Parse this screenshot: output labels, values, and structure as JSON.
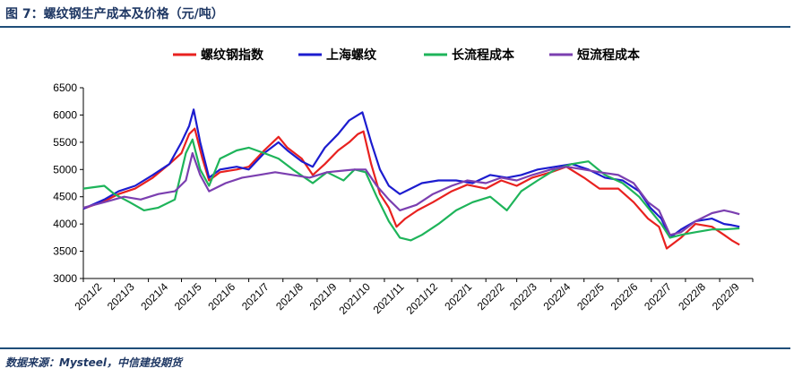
{
  "header": {
    "title": "图 7：螺纹钢生产成本及价格（元/吨）"
  },
  "footer": {
    "source": "数据来源：Mysteel，中信建投期货"
  },
  "chart_data": {
    "type": "line",
    "title": "",
    "xlabel": "",
    "ylabel": "",
    "ylim": [
      3000,
      6500
    ],
    "yticks": [
      3000,
      3500,
      4000,
      4500,
      5000,
      5500,
      6000,
      6500
    ],
    "grid": false,
    "legend_position": "top",
    "xtick_labels": [
      "2021/2",
      "2021/3",
      "2021/4",
      "2021/5",
      "2021/6",
      "2021/7",
      "2021/8",
      "2021/9",
      "2021/10",
      "2021/11",
      "2021/12",
      "2022/1",
      "2022/2",
      "2022/3",
      "2022/4",
      "2022/5",
      "2022/6",
      "2022/7",
      "2022/8",
      "2022/9"
    ],
    "x_months": [
      "2021-02",
      "2021-03",
      "2021-04",
      "2021-05",
      "2021-06",
      "2021-07",
      "2021-08",
      "2021-09",
      "2021-10",
      "2021-11",
      "2021-12",
      "2022-01",
      "2022-02",
      "2022-03",
      "2022-04",
      "2022-05",
      "2022-06",
      "2022-07",
      "2022-08",
      "2022-09",
      "2022-10"
    ],
    "series": [
      {
        "name": "螺纹钢指数",
        "color": "#e8211f",
        "points": [
          [
            "2021-02-01",
            4280
          ],
          [
            "2021-02-20",
            4420
          ],
          [
            "2021-03-05",
            4550
          ],
          [
            "2021-03-20",
            4650
          ],
          [
            "2021-04-05",
            4850
          ],
          [
            "2021-04-20",
            5100
          ],
          [
            "2021-05-01",
            5300
          ],
          [
            "2021-05-08",
            5650
          ],
          [
            "2021-05-13",
            5750
          ],
          [
            "2021-05-20",
            5200
          ],
          [
            "2021-05-26",
            4800
          ],
          [
            "2021-06-05",
            4950
          ],
          [
            "2021-06-20",
            5000
          ],
          [
            "2021-07-01",
            5050
          ],
          [
            "2021-07-15",
            5350
          ],
          [
            "2021-07-28",
            5600
          ],
          [
            "2021-08-05",
            5400
          ],
          [
            "2021-08-18",
            5200
          ],
          [
            "2021-08-28",
            4900
          ],
          [
            "2021-09-08",
            5100
          ],
          [
            "2021-09-20",
            5350
          ],
          [
            "2021-09-30",
            5500
          ],
          [
            "2021-10-08",
            5650
          ],
          [
            "2021-10-13",
            5700
          ],
          [
            "2021-10-20",
            5100
          ],
          [
            "2021-10-28",
            4550
          ],
          [
            "2021-11-05",
            4300
          ],
          [
            "2021-11-12",
            3950
          ],
          [
            "2021-11-20",
            4100
          ],
          [
            "2021-12-01",
            4250
          ],
          [
            "2021-12-15",
            4400
          ],
          [
            "2022-01-01",
            4600
          ],
          [
            "2022-01-15",
            4720
          ],
          [
            "2022-02-01",
            4650
          ],
          [
            "2022-02-15",
            4800
          ],
          [
            "2022-03-01",
            4700
          ],
          [
            "2022-03-15",
            4850
          ],
          [
            "2022-04-01",
            4950
          ],
          [
            "2022-04-15",
            5050
          ],
          [
            "2022-05-01",
            4850
          ],
          [
            "2022-05-15",
            4650
          ],
          [
            "2022-06-01",
            4650
          ],
          [
            "2022-06-15",
            4400
          ],
          [
            "2022-06-28",
            4100
          ],
          [
            "2022-07-08",
            3950
          ],
          [
            "2022-07-15",
            3550
          ],
          [
            "2022-07-28",
            3750
          ],
          [
            "2022-08-10",
            4000
          ],
          [
            "2022-08-25",
            3950
          ],
          [
            "2022-09-05",
            3800
          ],
          [
            "2022-09-12",
            3700
          ],
          [
            "2022-09-19",
            3620
          ]
        ]
      },
      {
        "name": "上海螺纹",
        "color": "#1c1ccf",
        "points": [
          [
            "2021-02-01",
            4280
          ],
          [
            "2021-02-20",
            4450
          ],
          [
            "2021-03-05",
            4600
          ],
          [
            "2021-03-20",
            4700
          ],
          [
            "2021-04-05",
            4900
          ],
          [
            "2021-04-20",
            5100
          ],
          [
            "2021-05-01",
            5500
          ],
          [
            "2021-05-08",
            5800
          ],
          [
            "2021-05-12",
            6100
          ],
          [
            "2021-05-18",
            5500
          ],
          [
            "2021-05-26",
            4850
          ],
          [
            "2021-06-05",
            5000
          ],
          [
            "2021-06-20",
            5050
          ],
          [
            "2021-07-01",
            5000
          ],
          [
            "2021-07-15",
            5300
          ],
          [
            "2021-07-28",
            5500
          ],
          [
            "2021-08-05",
            5350
          ],
          [
            "2021-08-18",
            5150
          ],
          [
            "2021-08-28",
            5050
          ],
          [
            "2021-09-08",
            5400
          ],
          [
            "2021-09-20",
            5650
          ],
          [
            "2021-09-30",
            5900
          ],
          [
            "2021-10-08",
            6000
          ],
          [
            "2021-10-12",
            6050
          ],
          [
            "2021-10-20",
            5500
          ],
          [
            "2021-10-28",
            5000
          ],
          [
            "2021-11-05",
            4700
          ],
          [
            "2021-11-15",
            4550
          ],
          [
            "2021-11-25",
            4650
          ],
          [
            "2021-12-05",
            4750
          ],
          [
            "2021-12-20",
            4800
          ],
          [
            "2022-01-05",
            4800
          ],
          [
            "2022-01-20",
            4750
          ],
          [
            "2022-02-05",
            4900
          ],
          [
            "2022-02-20",
            4850
          ],
          [
            "2022-03-05",
            4900
          ],
          [
            "2022-03-20",
            5000
          ],
          [
            "2022-04-05",
            5050
          ],
          [
            "2022-04-20",
            5100
          ],
          [
            "2022-05-05",
            5000
          ],
          [
            "2022-05-20",
            4850
          ],
          [
            "2022-06-05",
            4800
          ],
          [
            "2022-06-20",
            4600
          ],
          [
            "2022-06-30",
            4300
          ],
          [
            "2022-07-10",
            4100
          ],
          [
            "2022-07-18",
            3750
          ],
          [
            "2022-07-28",
            3900
          ],
          [
            "2022-08-10",
            4050
          ],
          [
            "2022-08-25",
            4100
          ],
          [
            "2022-09-05",
            4000
          ],
          [
            "2022-09-12",
            3980
          ],
          [
            "2022-09-19",
            3950
          ]
        ]
      },
      {
        "name": "长流程成本",
        "color": "#1eb45a",
        "points": [
          [
            "2021-02-01",
            4650
          ],
          [
            "2021-02-20",
            4700
          ],
          [
            "2021-03-01",
            4550
          ],
          [
            "2021-03-15",
            4400
          ],
          [
            "2021-03-28",
            4250
          ],
          [
            "2021-04-10",
            4300
          ],
          [
            "2021-04-25",
            4450
          ],
          [
            "2021-05-05",
            5300
          ],
          [
            "2021-05-11",
            5550
          ],
          [
            "2021-05-18",
            5000
          ],
          [
            "2021-05-26",
            4700
          ],
          [
            "2021-06-05",
            5200
          ],
          [
            "2021-06-20",
            5350
          ],
          [
            "2021-07-01",
            5400
          ],
          [
            "2021-07-15",
            5300
          ],
          [
            "2021-07-28",
            5200
          ],
          [
            "2021-08-10",
            5000
          ],
          [
            "2021-08-28",
            4750
          ],
          [
            "2021-09-10",
            4950
          ],
          [
            "2021-09-25",
            4800
          ],
          [
            "2021-10-05",
            5000
          ],
          [
            "2021-10-15",
            4950
          ],
          [
            "2021-10-25",
            4500
          ],
          [
            "2021-11-05",
            4050
          ],
          [
            "2021-11-15",
            3750
          ],
          [
            "2021-11-25",
            3700
          ],
          [
            "2021-12-05",
            3800
          ],
          [
            "2021-12-20",
            4000
          ],
          [
            "2022-01-05",
            4250
          ],
          [
            "2022-01-20",
            4400
          ],
          [
            "2022-02-05",
            4500
          ],
          [
            "2022-02-20",
            4250
          ],
          [
            "2022-03-05",
            4600
          ],
          [
            "2022-03-20",
            4800
          ],
          [
            "2022-04-05",
            5000
          ],
          [
            "2022-04-20",
            5100
          ],
          [
            "2022-05-05",
            5150
          ],
          [
            "2022-05-20",
            4900
          ],
          [
            "2022-06-05",
            4750
          ],
          [
            "2022-06-20",
            4500
          ],
          [
            "2022-06-30",
            4250
          ],
          [
            "2022-07-10",
            4000
          ],
          [
            "2022-07-18",
            3750
          ],
          [
            "2022-07-28",
            3800
          ],
          [
            "2022-08-10",
            3850
          ],
          [
            "2022-08-25",
            3900
          ],
          [
            "2022-09-05",
            3900
          ],
          [
            "2022-09-19",
            3920
          ]
        ]
      },
      {
        "name": "短流程成本",
        "color": "#7b3fb0",
        "points": [
          [
            "2021-02-01",
            4300
          ],
          [
            "2021-02-20",
            4400
          ],
          [
            "2021-03-10",
            4500
          ],
          [
            "2021-03-25",
            4450
          ],
          [
            "2021-04-10",
            4550
          ],
          [
            "2021-04-25",
            4600
          ],
          [
            "2021-05-05",
            4800
          ],
          [
            "2021-05-11",
            5300
          ],
          [
            "2021-05-18",
            4900
          ],
          [
            "2021-05-26",
            4600
          ],
          [
            "2021-06-10",
            4750
          ],
          [
            "2021-06-25",
            4850
          ],
          [
            "2021-07-10",
            4900
          ],
          [
            "2021-07-25",
            4950
          ],
          [
            "2021-08-10",
            4900
          ],
          [
            "2021-08-25",
            4850
          ],
          [
            "2021-09-10",
            4950
          ],
          [
            "2021-09-25",
            4980
          ],
          [
            "2021-10-05",
            5000
          ],
          [
            "2021-10-15",
            5000
          ],
          [
            "2021-10-25",
            4700
          ],
          [
            "2021-11-05",
            4450
          ],
          [
            "2021-11-15",
            4250
          ],
          [
            "2021-11-30",
            4350
          ],
          [
            "2021-12-15",
            4550
          ],
          [
            "2022-01-01",
            4700
          ],
          [
            "2022-01-15",
            4800
          ],
          [
            "2022-02-01",
            4750
          ],
          [
            "2022-02-15",
            4850
          ],
          [
            "2022-03-01",
            4800
          ],
          [
            "2022-03-15",
            4900
          ],
          [
            "2022-04-01",
            5000
          ],
          [
            "2022-04-15",
            5050
          ],
          [
            "2022-05-01",
            5000
          ],
          [
            "2022-05-15",
            4950
          ],
          [
            "2022-06-01",
            4900
          ],
          [
            "2022-06-15",
            4750
          ],
          [
            "2022-06-28",
            4400
          ],
          [
            "2022-07-08",
            4250
          ],
          [
            "2022-07-18",
            3800
          ],
          [
            "2022-07-28",
            3850
          ],
          [
            "2022-08-10",
            4050
          ],
          [
            "2022-08-25",
            4200
          ],
          [
            "2022-09-05",
            4250
          ],
          [
            "2022-09-12",
            4220
          ],
          [
            "2022-09-19",
            4180
          ]
        ]
      }
    ]
  }
}
